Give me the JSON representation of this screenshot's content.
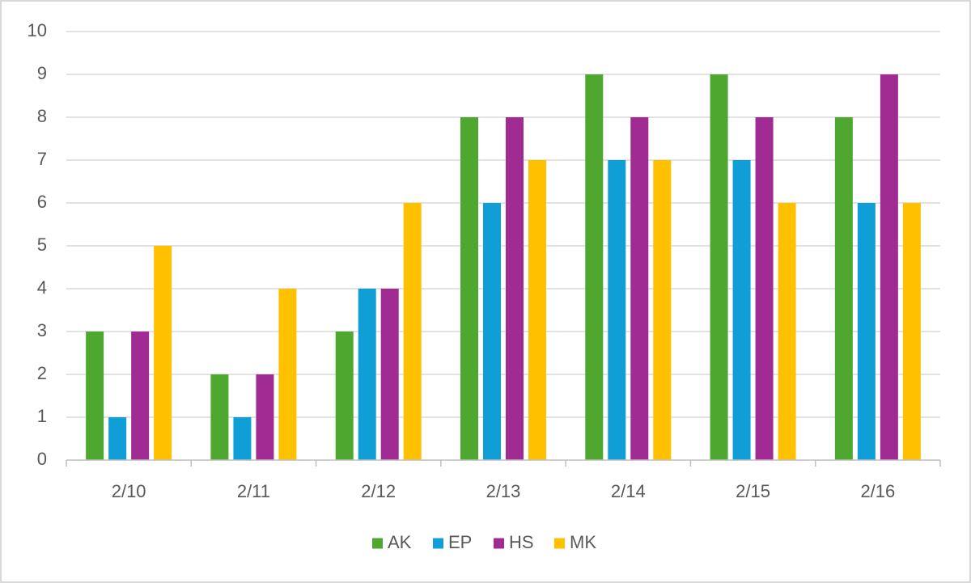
{
  "chart_data": {
    "type": "bar",
    "title": "",
    "xlabel": "",
    "ylabel": "",
    "categories": [
      "2/10",
      "2/11",
      "2/12",
      "2/13",
      "2/14",
      "2/15",
      "2/16"
    ],
    "series": [
      {
        "name": "AK",
        "color": "#4ea72e",
        "values": [
          3,
          2,
          3,
          8,
          9,
          9,
          8
        ]
      },
      {
        "name": "EP",
        "color": "#0f9ed5",
        "values": [
          1,
          1,
          4,
          6,
          7,
          7,
          6
        ]
      },
      {
        "name": "HS",
        "color": "#a02b93",
        "values": [
          3,
          2,
          4,
          8,
          8,
          8,
          9
        ]
      },
      {
        "name": "MK",
        "color": "#ffc000",
        "values": [
          5,
          4,
          6,
          7,
          7,
          6,
          6
        ]
      }
    ],
    "ylim": [
      0,
      10
    ],
    "yticks": [
      "0",
      "1",
      "2",
      "3",
      "4",
      "5",
      "6",
      "7",
      "8",
      "9",
      "10"
    ],
    "grid": true,
    "legend_position": "bottom"
  }
}
